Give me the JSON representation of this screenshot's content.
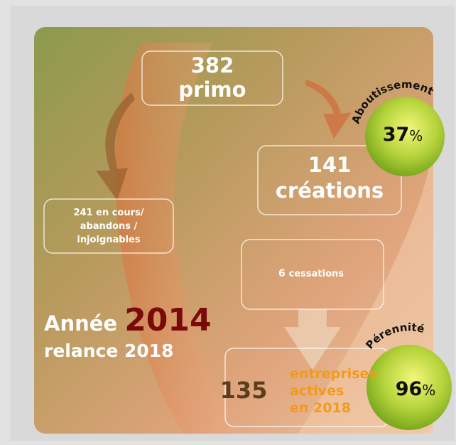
{
  "flow": {
    "primo": {
      "count": 382,
      "label": "primo"
    },
    "creations": {
      "count": 141,
      "label": "créations"
    },
    "en_cours": {
      "lines": [
        "241 en cours/",
        "abandons /",
        "injoignables"
      ]
    },
    "cessations": {
      "count": 6,
      "label": "cessations"
    },
    "actives": {
      "count": 135,
      "lines": [
        "entreprises",
        "actives",
        "en 2018"
      ]
    }
  },
  "year": {
    "label": "Année",
    "year": "2014",
    "relance": "relance 2018"
  },
  "rates": [
    {
      "title": "Aboutissement",
      "value": 37,
      "unit": "%"
    },
    {
      "title": "Pérennité",
      "value": 96,
      "unit": "%"
    }
  ]
}
